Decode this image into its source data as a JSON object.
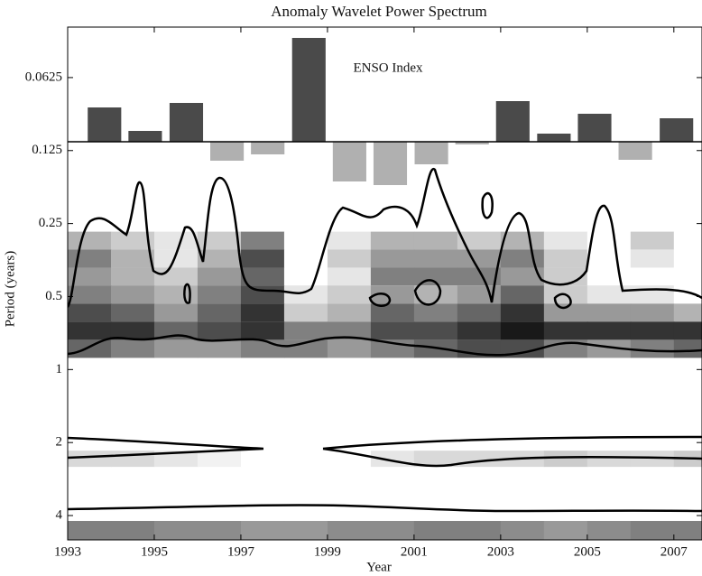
{
  "chart_data": {
    "type": "wavelet",
    "title": "Anomaly Wavelet Power Spectrum",
    "xlabel": "Year",
    "ylabel": "Period (years)",
    "annotation": "ENSO Index",
    "xlim": [
      1993,
      2007.65
    ],
    "xticks": [
      1993,
      1995,
      1997,
      1999,
      2001,
      2003,
      2005,
      2007
    ],
    "ylim": [
      0.0387,
      5.04
    ],
    "log_y": true,
    "inverted_y": true,
    "yticks": [
      0.0625,
      0.125,
      0.25,
      0.5,
      1,
      2,
      4
    ],
    "times": [
      1993,
      1994,
      1995,
      1996,
      1997,
      1998,
      1999,
      2000,
      2001,
      2002,
      2003,
      2004,
      2005,
      2006,
      2007
    ],
    "period_bands": [
      [
        0.27,
        0.32
      ],
      [
        0.32,
        0.38
      ],
      [
        0.38,
        0.45
      ],
      [
        0.45,
        0.535
      ],
      [
        0.535,
        0.635
      ],
      [
        0.635,
        0.754
      ],
      [
        0.754,
        0.895
      ],
      [
        2.16,
        2.52
      ],
      [
        4.21,
        5.04
      ]
    ],
    "power": [
      [
        0.3,
        0.2,
        0.1,
        0.2,
        0.5,
        0,
        0.1,
        0.3,
        0.3,
        0.2,
        0.3,
        0.1,
        0,
        0.2,
        0
      ],
      [
        0.5,
        0.3,
        0.1,
        0.3,
        0.7,
        0,
        0.2,
        0.4,
        0.4,
        0.4,
        0.5,
        0.2,
        0,
        0.1,
        0
      ],
      [
        0.4,
        0.3,
        0.2,
        0.4,
        0.6,
        0,
        0.1,
        0.5,
        0.5,
        0.5,
        0.4,
        0.2,
        0,
        0,
        0
      ],
      [
        0.5,
        0.4,
        0.3,
        0.5,
        0.7,
        0.1,
        0.2,
        0.4,
        0.3,
        0.4,
        0.6,
        0.2,
        0.1,
        0.1,
        0
      ],
      [
        0.7,
        0.6,
        0.4,
        0.6,
        0.8,
        0.2,
        0.3,
        0.6,
        0.5,
        0.6,
        0.8,
        0.4,
        0.4,
        0.4,
        0.3
      ],
      [
        0.8,
        0.8,
        0.6,
        0.7,
        0.8,
        0.5,
        0.5,
        0.7,
        0.7,
        0.8,
        0.9,
        0.8,
        0.8,
        0.8,
        0.8
      ],
      [
        0.6,
        0.5,
        0.4,
        0.4,
        0.5,
        0.5,
        0.4,
        0.5,
        0.6,
        0.7,
        0.7,
        0.5,
        0.4,
        0.5,
        0.6
      ],
      [
        0.15,
        0.15,
        0.1,
        0.05,
        0,
        0,
        0,
        0.1,
        0.15,
        0.15,
        0.15,
        0.2,
        0.15,
        0.15,
        0.2
      ],
      [
        0.5,
        0.5,
        0.45,
        0.45,
        0.4,
        0.4,
        0.45,
        0.45,
        0.5,
        0.5,
        0.45,
        0.4,
        0.45,
        0.5,
        0.5
      ]
    ],
    "enso": {
      "x": [
        1993.85,
        1994.79,
        1995.74,
        1996.68,
        1997.62,
        1998.57,
        1999.51,
        2000.45,
        2001.4,
        2002.34,
        2003.28,
        2004.23,
        2005.17,
        2006.11,
        2007.06
      ],
      "values": [
        0.76,
        0.24,
        0.86,
        -0.42,
        -0.28,
        2.3,
        -0.88,
        -0.96,
        -0.5,
        -0.06,
        0.9,
        0.18,
        0.62,
        -0.4,
        0.52
      ],
      "y2lim": [
        -8.82,
        2.54
      ],
      "positive_color": "#4a4a4a",
      "negative_color": "#b0b0b0"
    }
  }
}
